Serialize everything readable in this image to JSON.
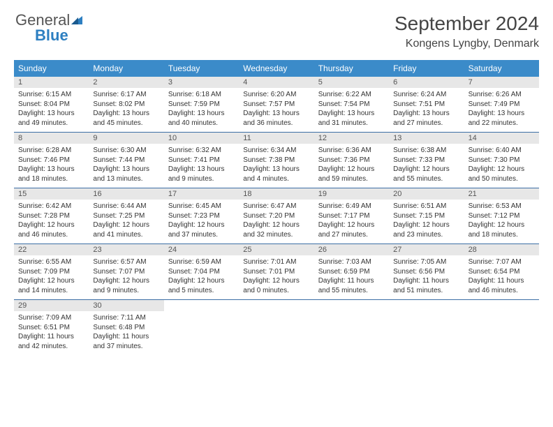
{
  "logo": {
    "text_main": "General",
    "text_accent": "Blue",
    "text_color": "#555555",
    "accent_color": "#2d7fc1",
    "icon_name": "sail-icon"
  },
  "title": "September 2024",
  "location": "Kongens Lyngby, Denmark",
  "header_bg": "#3b8bc9",
  "header_fg": "#ffffff",
  "daynum_bg": "#e7e7e7",
  "border_color": "#3b6ea5",
  "day_names": [
    "Sunday",
    "Monday",
    "Tuesday",
    "Wednesday",
    "Thursday",
    "Friday",
    "Saturday"
  ],
  "weeks": [
    [
      {
        "n": "1",
        "sr": "Sunrise: 6:15 AM",
        "ss": "Sunset: 8:04 PM",
        "dl": "Daylight: 13 hours and 49 minutes."
      },
      {
        "n": "2",
        "sr": "Sunrise: 6:17 AM",
        "ss": "Sunset: 8:02 PM",
        "dl": "Daylight: 13 hours and 45 minutes."
      },
      {
        "n": "3",
        "sr": "Sunrise: 6:18 AM",
        "ss": "Sunset: 7:59 PM",
        "dl": "Daylight: 13 hours and 40 minutes."
      },
      {
        "n": "4",
        "sr": "Sunrise: 6:20 AM",
        "ss": "Sunset: 7:57 PM",
        "dl": "Daylight: 13 hours and 36 minutes."
      },
      {
        "n": "5",
        "sr": "Sunrise: 6:22 AM",
        "ss": "Sunset: 7:54 PM",
        "dl": "Daylight: 13 hours and 31 minutes."
      },
      {
        "n": "6",
        "sr": "Sunrise: 6:24 AM",
        "ss": "Sunset: 7:51 PM",
        "dl": "Daylight: 13 hours and 27 minutes."
      },
      {
        "n": "7",
        "sr": "Sunrise: 6:26 AM",
        "ss": "Sunset: 7:49 PM",
        "dl": "Daylight: 13 hours and 22 minutes."
      }
    ],
    [
      {
        "n": "8",
        "sr": "Sunrise: 6:28 AM",
        "ss": "Sunset: 7:46 PM",
        "dl": "Daylight: 13 hours and 18 minutes."
      },
      {
        "n": "9",
        "sr": "Sunrise: 6:30 AM",
        "ss": "Sunset: 7:44 PM",
        "dl": "Daylight: 13 hours and 13 minutes."
      },
      {
        "n": "10",
        "sr": "Sunrise: 6:32 AM",
        "ss": "Sunset: 7:41 PM",
        "dl": "Daylight: 13 hours and 9 minutes."
      },
      {
        "n": "11",
        "sr": "Sunrise: 6:34 AM",
        "ss": "Sunset: 7:38 PM",
        "dl": "Daylight: 13 hours and 4 minutes."
      },
      {
        "n": "12",
        "sr": "Sunrise: 6:36 AM",
        "ss": "Sunset: 7:36 PM",
        "dl": "Daylight: 12 hours and 59 minutes."
      },
      {
        "n": "13",
        "sr": "Sunrise: 6:38 AM",
        "ss": "Sunset: 7:33 PM",
        "dl": "Daylight: 12 hours and 55 minutes."
      },
      {
        "n": "14",
        "sr": "Sunrise: 6:40 AM",
        "ss": "Sunset: 7:30 PM",
        "dl": "Daylight: 12 hours and 50 minutes."
      }
    ],
    [
      {
        "n": "15",
        "sr": "Sunrise: 6:42 AM",
        "ss": "Sunset: 7:28 PM",
        "dl": "Daylight: 12 hours and 46 minutes."
      },
      {
        "n": "16",
        "sr": "Sunrise: 6:44 AM",
        "ss": "Sunset: 7:25 PM",
        "dl": "Daylight: 12 hours and 41 minutes."
      },
      {
        "n": "17",
        "sr": "Sunrise: 6:45 AM",
        "ss": "Sunset: 7:23 PM",
        "dl": "Daylight: 12 hours and 37 minutes."
      },
      {
        "n": "18",
        "sr": "Sunrise: 6:47 AM",
        "ss": "Sunset: 7:20 PM",
        "dl": "Daylight: 12 hours and 32 minutes."
      },
      {
        "n": "19",
        "sr": "Sunrise: 6:49 AM",
        "ss": "Sunset: 7:17 PM",
        "dl": "Daylight: 12 hours and 27 minutes."
      },
      {
        "n": "20",
        "sr": "Sunrise: 6:51 AM",
        "ss": "Sunset: 7:15 PM",
        "dl": "Daylight: 12 hours and 23 minutes."
      },
      {
        "n": "21",
        "sr": "Sunrise: 6:53 AM",
        "ss": "Sunset: 7:12 PM",
        "dl": "Daylight: 12 hours and 18 minutes."
      }
    ],
    [
      {
        "n": "22",
        "sr": "Sunrise: 6:55 AM",
        "ss": "Sunset: 7:09 PM",
        "dl": "Daylight: 12 hours and 14 minutes."
      },
      {
        "n": "23",
        "sr": "Sunrise: 6:57 AM",
        "ss": "Sunset: 7:07 PM",
        "dl": "Daylight: 12 hours and 9 minutes."
      },
      {
        "n": "24",
        "sr": "Sunrise: 6:59 AM",
        "ss": "Sunset: 7:04 PM",
        "dl": "Daylight: 12 hours and 5 minutes."
      },
      {
        "n": "25",
        "sr": "Sunrise: 7:01 AM",
        "ss": "Sunset: 7:01 PM",
        "dl": "Daylight: 12 hours and 0 minutes."
      },
      {
        "n": "26",
        "sr": "Sunrise: 7:03 AM",
        "ss": "Sunset: 6:59 PM",
        "dl": "Daylight: 11 hours and 55 minutes."
      },
      {
        "n": "27",
        "sr": "Sunrise: 7:05 AM",
        "ss": "Sunset: 6:56 PM",
        "dl": "Daylight: 11 hours and 51 minutes."
      },
      {
        "n": "28",
        "sr": "Sunrise: 7:07 AM",
        "ss": "Sunset: 6:54 PM",
        "dl": "Daylight: 11 hours and 46 minutes."
      }
    ],
    [
      {
        "n": "29",
        "sr": "Sunrise: 7:09 AM",
        "ss": "Sunset: 6:51 PM",
        "dl": "Daylight: 11 hours and 42 minutes."
      },
      {
        "n": "30",
        "sr": "Sunrise: 7:11 AM",
        "ss": "Sunset: 6:48 PM",
        "dl": "Daylight: 11 hours and 37 minutes."
      },
      null,
      null,
      null,
      null,
      null
    ]
  ]
}
